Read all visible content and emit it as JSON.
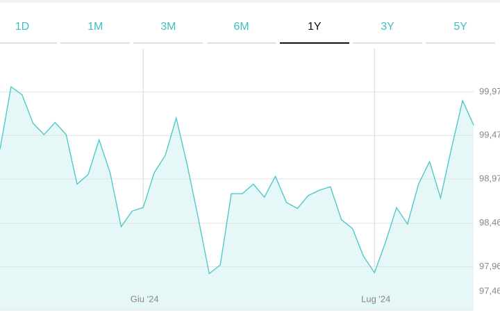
{
  "tabs": [
    "1D",
    "1M",
    "3M",
    "6M",
    "1Y",
    "3Y",
    "5Y"
  ],
  "selected_tab": 4,
  "chart_data": {
    "type": "area",
    "categories": [
      null,
      null,
      null,
      null,
      null,
      null,
      null,
      null,
      null,
      null,
      null,
      null,
      null,
      "Giu '24",
      null,
      null,
      null,
      null,
      null,
      null,
      null,
      null,
      null,
      null,
      null,
      null,
      null,
      null,
      null,
      null,
      null,
      null,
      null,
      null,
      "Lug '24",
      null,
      null,
      null,
      null,
      null,
      null,
      null,
      null,
      null
    ],
    "values": [
      99.31,
      100.03,
      99.94,
      99.61,
      99.48,
      99.62,
      99.48,
      98.91,
      99.02,
      99.42,
      99.04,
      98.42,
      98.6,
      98.64,
      99.04,
      99.24,
      99.67,
      99.13,
      98.52,
      97.88,
      97.98,
      98.8,
      98.8,
      98.91,
      98.76,
      99.0,
      98.7,
      98.63,
      98.78,
      98.84,
      98.88,
      98.5,
      98.4,
      98.08,
      97.89,
      98.24,
      98.64,
      98.45,
      98.91,
      99.17,
      98.75,
      99.33,
      99.87,
      99.59
    ],
    "color": "#4fc9c9",
    "ylim": [
      97.46,
      100.47
    ],
    "yticks": [
      {
        "value": 97.46,
        "label": "97,46"
      },
      {
        "value": 97.96,
        "label": "97,96"
      },
      {
        "value": 98.46,
        "label": "98,46"
      },
      {
        "value": 98.97,
        "label": "98,97"
      },
      {
        "value": 99.47,
        "label": "99,47"
      },
      {
        "value": 99.97,
        "label": "99,97"
      }
    ],
    "grid": true
  }
}
